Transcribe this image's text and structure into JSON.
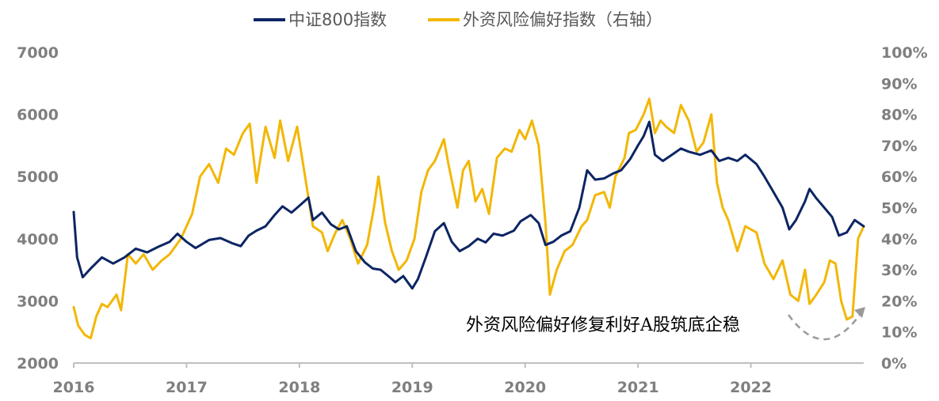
{
  "chart_data": {
    "type": "line",
    "x_start": 2016.0,
    "x_end": 2023.0,
    "xticks": [
      "2016",
      "2017",
      "2018",
      "2019",
      "2020",
      "2021",
      "2022"
    ],
    "y_left": {
      "ylim": [
        2000,
        7000
      ],
      "ticks": [
        "2000",
        "3000",
        "4000",
        "5000",
        "6000",
        "7000"
      ]
    },
    "y_right": {
      "ylim": [
        0,
        100
      ],
      "ticks": [
        "0%",
        "10%",
        "20%",
        "30%",
        "40%",
        "50%",
        "60%",
        "70%",
        "80%",
        "90%",
        "100%"
      ]
    },
    "series": [
      {
        "name": "中证800指数",
        "axis": "left",
        "color": "#0d2563",
        "points": [
          [
            2016.0,
            4430
          ],
          [
            2016.03,
            3700
          ],
          [
            2016.08,
            3380
          ],
          [
            2016.15,
            3520
          ],
          [
            2016.25,
            3700
          ],
          [
            2016.35,
            3600
          ],
          [
            2016.45,
            3700
          ],
          [
            2016.55,
            3840
          ],
          [
            2016.65,
            3780
          ],
          [
            2016.75,
            3870
          ],
          [
            2016.85,
            3950
          ],
          [
            2016.92,
            4080
          ],
          [
            2017.0,
            3950
          ],
          [
            2017.08,
            3850
          ],
          [
            2017.2,
            3980
          ],
          [
            2017.3,
            4010
          ],
          [
            2017.4,
            3930
          ],
          [
            2017.48,
            3880
          ],
          [
            2017.55,
            4050
          ],
          [
            2017.62,
            4130
          ],
          [
            2017.7,
            4200
          ],
          [
            2017.78,
            4380
          ],
          [
            2017.85,
            4520
          ],
          [
            2017.93,
            4420
          ],
          [
            2018.0,
            4530
          ],
          [
            2018.08,
            4660
          ],
          [
            2018.12,
            4300
          ],
          [
            2018.2,
            4420
          ],
          [
            2018.28,
            4230
          ],
          [
            2018.35,
            4150
          ],
          [
            2018.42,
            4200
          ],
          [
            2018.5,
            3800
          ],
          [
            2018.58,
            3620
          ],
          [
            2018.65,
            3520
          ],
          [
            2018.72,
            3500
          ],
          [
            2018.8,
            3380
          ],
          [
            2018.85,
            3300
          ],
          [
            2018.92,
            3400
          ],
          [
            2019.0,
            3200
          ],
          [
            2019.05,
            3350
          ],
          [
            2019.12,
            3700
          ],
          [
            2019.2,
            4120
          ],
          [
            2019.28,
            4250
          ],
          [
            2019.35,
            3950
          ],
          [
            2019.42,
            3800
          ],
          [
            2019.5,
            3880
          ],
          [
            2019.58,
            4000
          ],
          [
            2019.65,
            3940
          ],
          [
            2019.72,
            4080
          ],
          [
            2019.8,
            4050
          ],
          [
            2019.9,
            4130
          ],
          [
            2019.96,
            4280
          ],
          [
            2020.05,
            4380
          ],
          [
            2020.12,
            4250
          ],
          [
            2020.18,
            3900
          ],
          [
            2020.25,
            3950
          ],
          [
            2020.32,
            4050
          ],
          [
            2020.4,
            4120
          ],
          [
            2020.48,
            4500
          ],
          [
            2020.55,
            5100
          ],
          [
            2020.62,
            4950
          ],
          [
            2020.7,
            4970
          ],
          [
            2020.78,
            5050
          ],
          [
            2020.85,
            5100
          ],
          [
            2020.93,
            5280
          ],
          [
            2021.0,
            5500
          ],
          [
            2021.05,
            5650
          ],
          [
            2021.1,
            5880
          ],
          [
            2021.15,
            5350
          ],
          [
            2021.22,
            5250
          ],
          [
            2021.3,
            5350
          ],
          [
            2021.38,
            5450
          ],
          [
            2021.45,
            5400
          ],
          [
            2021.55,
            5350
          ],
          [
            2021.65,
            5420
          ],
          [
            2021.72,
            5250
          ],
          [
            2021.8,
            5300
          ],
          [
            2021.88,
            5250
          ],
          [
            2021.95,
            5350
          ],
          [
            2022.05,
            5200
          ],
          [
            2022.12,
            5000
          ],
          [
            2022.2,
            4750
          ],
          [
            2022.28,
            4500
          ],
          [
            2022.34,
            4150
          ],
          [
            2022.4,
            4300
          ],
          [
            2022.48,
            4600
          ],
          [
            2022.52,
            4800
          ],
          [
            2022.58,
            4650
          ],
          [
            2022.65,
            4500
          ],
          [
            2022.72,
            4350
          ],
          [
            2022.78,
            4050
          ],
          [
            2022.85,
            4100
          ],
          [
            2022.92,
            4300
          ],
          [
            2023.0,
            4200
          ]
        ]
      },
      {
        "name": "外资风险偏好指数（右轴）",
        "axis": "right",
        "color": "#f2b705",
        "points": [
          [
            2016.0,
            18
          ],
          [
            2016.04,
            12
          ],
          [
            2016.1,
            9
          ],
          [
            2016.15,
            8
          ],
          [
            2016.2,
            15
          ],
          [
            2016.25,
            19
          ],
          [
            2016.3,
            18
          ],
          [
            2016.38,
            22
          ],
          [
            2016.42,
            17
          ],
          [
            2016.48,
            35
          ],
          [
            2016.55,
            32
          ],
          [
            2016.62,
            35
          ],
          [
            2016.7,
            30
          ],
          [
            2016.78,
            33
          ],
          [
            2016.85,
            35
          ],
          [
            2016.95,
            40
          ],
          [
            2017.05,
            48
          ],
          [
            2017.12,
            60
          ],
          [
            2017.2,
            64
          ],
          [
            2017.28,
            58
          ],
          [
            2017.35,
            69
          ],
          [
            2017.42,
            67
          ],
          [
            2017.5,
            74
          ],
          [
            2017.56,
            77
          ],
          [
            2017.62,
            58
          ],
          [
            2017.7,
            76
          ],
          [
            2017.78,
            66
          ],
          [
            2017.83,
            78
          ],
          [
            2017.9,
            65
          ],
          [
            2017.98,
            76
          ],
          [
            2018.05,
            60
          ],
          [
            2018.12,
            44
          ],
          [
            2018.2,
            42
          ],
          [
            2018.25,
            36
          ],
          [
            2018.32,
            42
          ],
          [
            2018.38,
            46
          ],
          [
            2018.45,
            40
          ],
          [
            2018.52,
            32
          ],
          [
            2018.6,
            38
          ],
          [
            2018.66,
            50
          ],
          [
            2018.7,
            60
          ],
          [
            2018.76,
            45
          ],
          [
            2018.82,
            36
          ],
          [
            2018.88,
            30
          ],
          [
            2018.95,
            33
          ],
          [
            2019.02,
            40
          ],
          [
            2019.08,
            55
          ],
          [
            2019.14,
            62
          ],
          [
            2019.2,
            65
          ],
          [
            2019.28,
            72
          ],
          [
            2019.32,
            64
          ],
          [
            2019.4,
            50
          ],
          [
            2019.45,
            62
          ],
          [
            2019.5,
            65
          ],
          [
            2019.56,
            52
          ],
          [
            2019.62,
            56
          ],
          [
            2019.68,
            48
          ],
          [
            2019.75,
            66
          ],
          [
            2019.82,
            69
          ],
          [
            2019.88,
            68
          ],
          [
            2019.95,
            75
          ],
          [
            2020.0,
            72
          ],
          [
            2020.06,
            78
          ],
          [
            2020.12,
            70
          ],
          [
            2020.18,
            45
          ],
          [
            2020.22,
            22
          ],
          [
            2020.28,
            30
          ],
          [
            2020.35,
            36
          ],
          [
            2020.42,
            38
          ],
          [
            2020.5,
            44
          ],
          [
            2020.55,
            46
          ],
          [
            2020.62,
            54
          ],
          [
            2020.7,
            55
          ],
          [
            2020.75,
            50
          ],
          [
            2020.8,
            60
          ],
          [
            2020.88,
            66
          ],
          [
            2020.92,
            74
          ],
          [
            2020.98,
            75
          ],
          [
            2021.05,
            80
          ],
          [
            2021.1,
            85
          ],
          [
            2021.15,
            74
          ],
          [
            2021.2,
            78
          ],
          [
            2021.25,
            76
          ],
          [
            2021.32,
            74
          ],
          [
            2021.38,
            83
          ],
          [
            2021.45,
            78
          ],
          [
            2021.52,
            68
          ],
          [
            2021.58,
            71
          ],
          [
            2021.65,
            80
          ],
          [
            2021.7,
            58
          ],
          [
            2021.75,
            50
          ],
          [
            2021.8,
            46
          ],
          [
            2021.88,
            36
          ],
          [
            2021.95,
            44
          ],
          [
            2022.05,
            42
          ],
          [
            2022.12,
            32
          ],
          [
            2022.2,
            27
          ],
          [
            2022.28,
            33
          ],
          [
            2022.35,
            22
          ],
          [
            2022.42,
            20
          ],
          [
            2022.48,
            30
          ],
          [
            2022.52,
            19
          ],
          [
            2022.58,
            22
          ],
          [
            2022.65,
            26
          ],
          [
            2022.7,
            33
          ],
          [
            2022.75,
            32
          ],
          [
            2022.8,
            20
          ],
          [
            2022.85,
            14
          ],
          [
            2022.9,
            15
          ],
          [
            2022.95,
            40
          ],
          [
            2023.0,
            44
          ]
        ]
      }
    ],
    "annotations": [
      {
        "text": "外资风险偏好修复利好A股筑底企稳"
      }
    ]
  }
}
